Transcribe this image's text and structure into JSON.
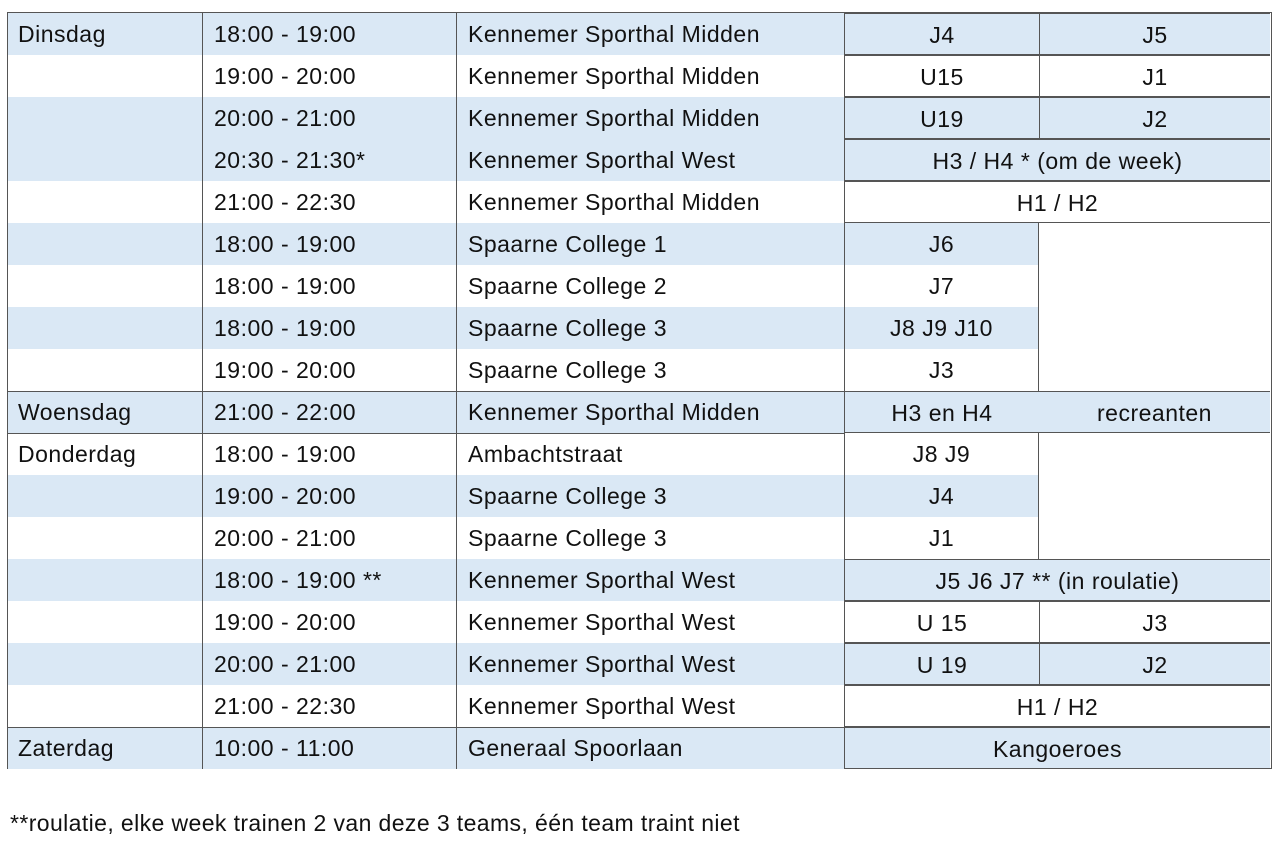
{
  "colors": {
    "shade": "#dae8f5",
    "border": "#555555"
  },
  "rows": [
    {
      "day": "Dinsdag",
      "time": "18:00 - 19:00",
      "location": "Kennemer Sporthal Midden",
      "mode": "split",
      "teams": [
        "J4",
        "J5"
      ],
      "shaded": true
    },
    {
      "day": "",
      "time": "19:00 - 20:00",
      "location": "Kennemer Sporthal Midden",
      "mode": "split",
      "teams": [
        "U15",
        "J1"
      ],
      "shaded": false
    },
    {
      "day": "",
      "time": "20:00 - 21:00",
      "location": "Kennemer Sporthal Midden",
      "mode": "split",
      "teams": [
        "U19",
        "J2"
      ],
      "shaded": true
    },
    {
      "day": "",
      "time": "20:30 - 21:30*",
      "location": "Kennemer Sporthal West",
      "mode": "full",
      "teams": [
        "H3 / H4 * (om de week)"
      ],
      "shaded": true
    },
    {
      "day": "",
      "time": "21:00 - 22:30",
      "location": "Kennemer Sporthal Midden",
      "mode": "full",
      "teams": [
        "H1 / H2"
      ],
      "shaded": false
    },
    {
      "day": "",
      "time": "18:00 - 19:00",
      "location": "Spaarne College 1",
      "mode": "single",
      "teams": [
        "J6"
      ],
      "shaded": true
    },
    {
      "day": "",
      "time": "18:00 - 19:00",
      "location": "Spaarne College 2",
      "mode": "single",
      "teams": [
        "J7"
      ],
      "shaded": false
    },
    {
      "day": "",
      "time": "18:00 - 19:00",
      "location": "Spaarne College 3",
      "mode": "single",
      "teams": [
        "J8 J9 J10"
      ],
      "shaded": true
    },
    {
      "day": "",
      "time": "19:00 - 20:00",
      "location": "Spaarne College 3",
      "mode": "single",
      "teams": [
        "J3"
      ],
      "shaded": false
    },
    {
      "day": "Woensdag",
      "time": "21:00 - 22:00",
      "location": "Kennemer Sporthal Midden",
      "mode": "pair",
      "teams": [
        "H3 en H4",
        "recreanten"
      ],
      "shaded": true,
      "day_start": true
    },
    {
      "day": "Donderdag",
      "time": "18:00 - 19:00",
      "location": "Ambachtstraat",
      "mode": "single",
      "teams": [
        "J8 J9"
      ],
      "shaded": false,
      "day_start": true
    },
    {
      "day": "",
      "time": "19:00 - 20:00",
      "location": "Spaarne College 3",
      "mode": "single",
      "teams": [
        "J4"
      ],
      "shaded": true
    },
    {
      "day": "",
      "time": "20:00 - 21:00",
      "location": "Spaarne College 3",
      "mode": "single",
      "teams": [
        "J1"
      ],
      "shaded": false
    },
    {
      "day": "",
      "time": "18:00 - 19:00 **",
      "location": "Kennemer Sporthal West",
      "mode": "full",
      "teams": [
        "J5  J6  J7 ** (in roulatie)"
      ],
      "shaded": true
    },
    {
      "day": "",
      "time": "19:00 - 20:00",
      "location": "Kennemer Sporthal West",
      "mode": "split",
      "teams": [
        "U 15",
        "J3"
      ],
      "shaded": false
    },
    {
      "day": "",
      "time": "20:00 - 21:00",
      "location": "Kennemer Sporthal West",
      "mode": "split",
      "teams": [
        "U 19",
        "J2"
      ],
      "shaded": true
    },
    {
      "day": "",
      "time": "21:00 - 22:30",
      "location": "Kennemer Sporthal West",
      "mode": "full",
      "teams": [
        "H1 / H2"
      ],
      "shaded": false
    },
    {
      "day": "Zaterdag",
      "time": "10:00 - 11:00",
      "location": "Generaal Spoorlaan",
      "mode": "full",
      "teams": [
        "Kangoeroes"
      ],
      "shaded": true,
      "day_start": true
    }
  ],
  "footnote": "**roulatie, elke week trainen 2 van deze 3 teams, één team traint niet"
}
